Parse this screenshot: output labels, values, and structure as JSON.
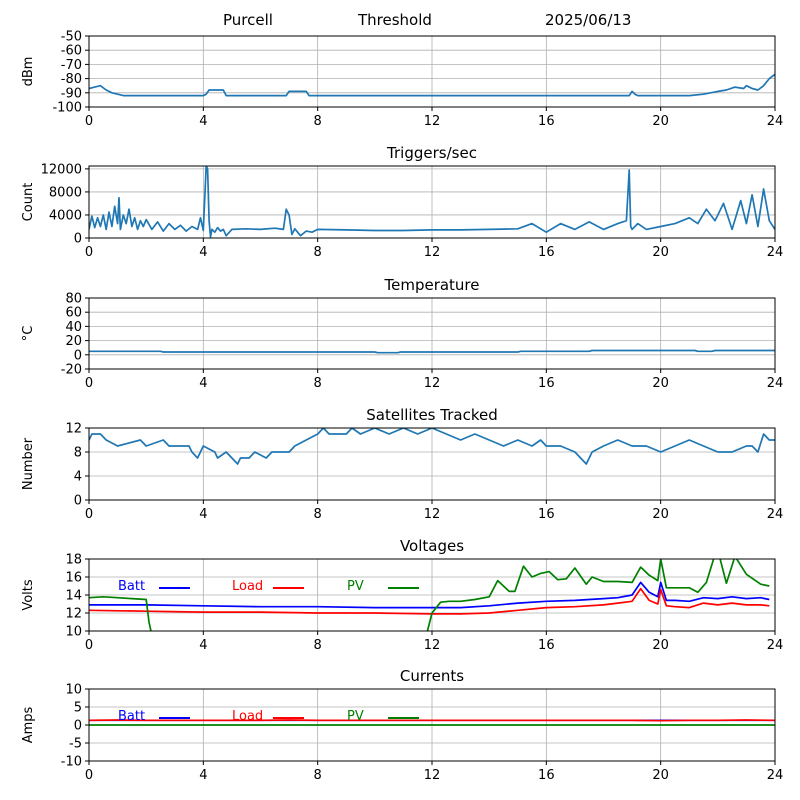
{
  "header": {
    "site": "Purcell",
    "mode": "Threshold",
    "date": "2025/06/13"
  },
  "colors": {
    "series_default": "#1f77b4",
    "batt": "#0000ff",
    "load": "#ff0000",
    "pv": "#008000",
    "grid": "#b0b0b0",
    "axis": "#000000"
  },
  "chart_data": [
    {
      "type": "line",
      "title": "",
      "xlabel": "",
      "ylabel": "dBm",
      "xlim": [
        0,
        24
      ],
      "ylim": [
        -100,
        -50
      ],
      "x_ticks": [
        0,
        4,
        8,
        12,
        16,
        20,
        24
      ],
      "y_ticks": [
        -100,
        -90,
        -80,
        -70,
        -60,
        -50
      ],
      "grid": true,
      "series": [
        {
          "color": "#1f77b4",
          "x": [
            0,
            0.2,
            0.4,
            0.6,
            0.8,
            1.0,
            1.2,
            2.0,
            3.0,
            4.0,
            4.1,
            4.2,
            4.7,
            4.8,
            5.0,
            6.0,
            6.9,
            7.0,
            7.6,
            7.7,
            8.0,
            12.0,
            16.0,
            18.9,
            19.0,
            19.1,
            19.2,
            20.0,
            21.0,
            21.5,
            22.0,
            22.3,
            22.6,
            22.9,
            23.0,
            23.2,
            23.4,
            23.6,
            23.8,
            24.0
          ],
          "y": [
            -87,
            -86,
            -85,
            -88,
            -90,
            -91,
            -92,
            -92,
            -92,
            -92,
            -91,
            -88,
            -88,
            -92,
            -92,
            -92,
            -92,
            -89,
            -89,
            -92,
            -92,
            -92,
            -92,
            -92,
            -89,
            -91,
            -92,
            -92,
            -92,
            -91,
            -89,
            -88,
            -86,
            -87,
            -85,
            -87,
            -88,
            -85,
            -80,
            -77
          ]
        }
      ]
    },
    {
      "type": "line",
      "title": "Triggers/sec",
      "xlabel": "",
      "ylabel": "Count",
      "xlim": [
        0,
        24
      ],
      "ylim": [
        0,
        12500
      ],
      "x_ticks": [
        0,
        4,
        8,
        12,
        16,
        20,
        24
      ],
      "y_ticks": [
        0,
        4000,
        8000,
        12000
      ],
      "grid": true,
      "series": [
        {
          "color": "#1f77b4",
          "x": [
            0,
            0.1,
            0.2,
            0.3,
            0.4,
            0.5,
            0.6,
            0.7,
            0.8,
            0.9,
            1.0,
            1.05,
            1.1,
            1.2,
            1.3,
            1.4,
            1.5,
            1.6,
            1.7,
            1.8,
            1.9,
            2.0,
            2.2,
            2.4,
            2.6,
            2.8,
            3.0,
            3.2,
            3.4,
            3.6,
            3.8,
            3.9,
            4.0,
            4.1,
            4.15,
            4.2,
            4.25,
            4.3,
            4.4,
            4.5,
            4.6,
            4.7,
            4.8,
            5.0,
            5.5,
            6.0,
            6.5,
            6.8,
            6.9,
            7.0,
            7.1,
            7.2,
            7.4,
            7.6,
            7.8,
            8.0,
            9.0,
            10.0,
            11.0,
            12.0,
            13.0,
            14.0,
            15.0,
            15.5,
            16.0,
            16.5,
            17.0,
            17.5,
            18.0,
            18.5,
            18.8,
            18.9,
            18.95,
            19.0,
            19.2,
            19.5,
            20.0,
            20.5,
            21.0,
            21.3,
            21.6,
            21.9,
            22.2,
            22.5,
            22.8,
            23.0,
            23.2,
            23.4,
            23.6,
            23.8,
            24.0
          ],
          "y": [
            1500,
            3800,
            1800,
            3500,
            2000,
            4000,
            1500,
            4500,
            2000,
            5500,
            2500,
            7000,
            1500,
            4000,
            2500,
            5000,
            2000,
            3500,
            1500,
            3000,
            2000,
            3200,
            1500,
            2800,
            1200,
            2500,
            1500,
            2200,
            1200,
            2000,
            1500,
            3500,
            1300,
            12500,
            12000,
            3000,
            200,
            1500,
            1000,
            1800,
            1200,
            1500,
            400,
            1500,
            1600,
            1500,
            1700,
            1500,
            5000,
            4000,
            600,
            1600,
            400,
            1200,
            1000,
            1500,
            1400,
            1300,
            1300,
            1400,
            1400,
            1500,
            1600,
            2500,
            1000,
            2500,
            1500,
            2800,
            1500,
            2500,
            3000,
            11800,
            2000,
            1500,
            2500,
            1500,
            2000,
            2500,
            3500,
            2500,
            5000,
            3000,
            6000,
            1500,
            6500,
            2500,
            7500,
            2000,
            8500,
            3000,
            1500
          ]
        }
      ]
    },
    {
      "type": "line",
      "title": "Temperature",
      "xlabel": "",
      "ylabel": "°C",
      "xlim": [
        0,
        24
      ],
      "ylim": [
        -20,
        80
      ],
      "x_ticks": [
        0,
        4,
        8,
        12,
        16,
        20,
        24
      ],
      "y_ticks": [
        -20,
        0,
        20,
        40,
        60,
        80
      ],
      "grid": true,
      "series": [
        {
          "color": "#1f77b4",
          "x": [
            0,
            2.5,
            2.6,
            10.0,
            10.1,
            10.8,
            10.9,
            15.0,
            15.1,
            17.5,
            17.6,
            21.2,
            21.3,
            21.8,
            21.9,
            24.0
          ],
          "y": [
            5,
            5,
            4,
            4,
            3,
            3,
            4,
            4,
            5,
            5,
            6,
            6,
            5,
            5,
            6,
            6
          ]
        }
      ]
    },
    {
      "type": "line",
      "title": "Satellites Tracked",
      "xlabel": "",
      "ylabel": "Number",
      "xlim": [
        0,
        24
      ],
      "ylim": [
        0,
        12
      ],
      "x_ticks": [
        0,
        4,
        8,
        12,
        16,
        20,
        24
      ],
      "y_ticks": [
        0,
        4,
        8,
        12
      ],
      "grid": true,
      "series": [
        {
          "color": "#1f77b4",
          "x": [
            0,
            0.1,
            0.4,
            0.6,
            1.0,
            1.8,
            2.0,
            2.6,
            2.8,
            3.5,
            3.6,
            3.8,
            4.0,
            4.4,
            4.5,
            4.8,
            5.0,
            5.2,
            5.3,
            5.6,
            5.8,
            6.2,
            6.4,
            7.0,
            7.2,
            7.6,
            8.0,
            8.2,
            8.4,
            9.0,
            9.2,
            9.5,
            10.0,
            10.5,
            11.0,
            11.5,
            12.0,
            12.5,
            13.0,
            13.5,
            14.0,
            14.5,
            15.0,
            15.5,
            15.8,
            16.0,
            16.5,
            17.0,
            17.2,
            17.4,
            17.6,
            18.0,
            18.5,
            19.0,
            19.5,
            20.0,
            20.5,
            21.0,
            21.5,
            22.0,
            22.5,
            23.0,
            23.2,
            23.4,
            23.6,
            23.8,
            24.0
          ],
          "y": [
            10,
            11,
            11,
            10,
            9,
            10,
            9,
            10,
            9,
            9,
            8,
            7,
            9,
            8,
            7,
            8,
            7,
            6,
            7,
            7,
            8,
            7,
            8,
            8,
            9,
            10,
            11,
            12,
            11,
            11,
            12,
            11,
            12,
            11,
            12,
            11,
            12,
            11,
            10,
            11,
            10,
            9,
            10,
            9,
            10,
            9,
            9,
            8,
            7,
            6,
            8,
            9,
            10,
            9,
            9,
            8,
            9,
            10,
            9,
            8,
            8,
            9,
            9,
            8,
            11,
            10,
            10
          ]
        }
      ]
    },
    {
      "type": "line",
      "title": "Voltages",
      "xlabel": "",
      "ylabel": "Volts",
      "xlim": [
        0,
        24
      ],
      "ylim": [
        10,
        18
      ],
      "x_ticks": [
        0,
        4,
        8,
        12,
        16,
        20,
        24
      ],
      "y_ticks": [
        10,
        12,
        14,
        16,
        18
      ],
      "grid": true,
      "legend": "top-left",
      "series": [
        {
          "name": "Batt",
          "color": "#0000ff",
          "x": [
            0,
            2,
            4,
            6,
            8,
            10,
            12,
            13,
            14,
            15,
            16,
            17,
            18,
            18.5,
            19.0,
            19.3,
            19.6,
            19.9,
            20.0,
            20.2,
            20.5,
            21.0,
            21.5,
            22.0,
            22.5,
            23.0,
            23.5,
            23.8
          ],
          "y": [
            12.9,
            12.9,
            12.8,
            12.7,
            12.7,
            12.6,
            12.6,
            12.6,
            12.8,
            13.1,
            13.3,
            13.4,
            13.6,
            13.7,
            14.0,
            15.4,
            14.3,
            13.8,
            15.4,
            13.4,
            13.4,
            13.3,
            13.7,
            13.6,
            13.8,
            13.6,
            13.7,
            13.5
          ]
        },
        {
          "name": "Load",
          "color": "#ff0000",
          "x": [
            0,
            2,
            4,
            6,
            8,
            10,
            12,
            13,
            14,
            15,
            16,
            17,
            18,
            18.5,
            19.0,
            19.3,
            19.6,
            19.9,
            20.0,
            20.2,
            20.5,
            21.0,
            21.5,
            22.0,
            22.5,
            23.0,
            23.5,
            23.8
          ],
          "y": [
            12.3,
            12.2,
            12.1,
            12.1,
            12.0,
            12.0,
            11.9,
            11.9,
            12.0,
            12.3,
            12.6,
            12.7,
            12.9,
            13.1,
            13.3,
            14.7,
            13.4,
            13.0,
            14.6,
            12.8,
            12.7,
            12.6,
            13.1,
            12.9,
            13.1,
            12.9,
            12.9,
            12.8
          ]
        },
        {
          "name": "PV",
          "color": "#008000",
          "x": [
            0,
            0.5,
            1.0,
            1.5,
            2.0,
            2.1,
            2.2,
            11.8,
            12.0,
            12.3,
            12.6,
            13.0,
            13.5,
            14.0,
            14.3,
            14.7,
            14.9,
            15.2,
            15.5,
            15.8,
            16.1,
            16.4,
            16.7,
            17.0,
            17.4,
            17.6,
            18.0,
            18.5,
            19.0,
            19.3,
            19.6,
            19.9,
            20.0,
            20.2,
            20.6,
            21.0,
            21.3,
            21.6,
            21.9,
            22.0,
            22.3,
            22.6,
            23.0,
            23.5,
            23.8
          ],
          "y": [
            13.7,
            13.8,
            13.7,
            13.6,
            13.5,
            11.0,
            9.5,
            9.5,
            12.0,
            13.2,
            13.3,
            13.3,
            13.5,
            13.8,
            15.6,
            14.4,
            14.4,
            17.2,
            16.0,
            16.4,
            16.6,
            15.7,
            15.8,
            17.0,
            15.2,
            16.0,
            15.5,
            15.5,
            15.4,
            17.1,
            16.2,
            15.6,
            18.0,
            14.8,
            14.8,
            14.8,
            14.3,
            15.4,
            18.5,
            19.0,
            15.3,
            18.3,
            16.3,
            15.2,
            15.0
          ]
        }
      ]
    },
    {
      "type": "line",
      "title": "Currents",
      "xlabel": "",
      "ylabel": "Amps",
      "xlim": [
        0,
        24
      ],
      "ylim": [
        -10,
        10
      ],
      "x_ticks": [
        0,
        4,
        8,
        12,
        16,
        20,
        24
      ],
      "y_ticks": [
        -10,
        -5,
        0,
        5,
        10
      ],
      "grid": true,
      "legend": "top-left",
      "series": [
        {
          "name": "Batt",
          "color": "#0000ff",
          "x": [
            0,
            24
          ],
          "y": [
            1.3,
            1.3
          ]
        },
        {
          "name": "Load",
          "color": "#ff0000",
          "x": [
            0,
            1,
            2,
            4,
            6,
            7,
            8,
            12,
            16,
            19,
            20,
            21,
            22,
            23,
            24
          ],
          "y": [
            1.3,
            1.4,
            1.3,
            1.3,
            1.3,
            1.4,
            1.3,
            1.3,
            1.3,
            1.3,
            1.2,
            1.3,
            1.3,
            1.4,
            1.3
          ]
        },
        {
          "name": "PV",
          "color": "#008000",
          "x": [
            0,
            24
          ],
          "y": [
            0.0,
            0.0
          ]
        }
      ]
    }
  ]
}
